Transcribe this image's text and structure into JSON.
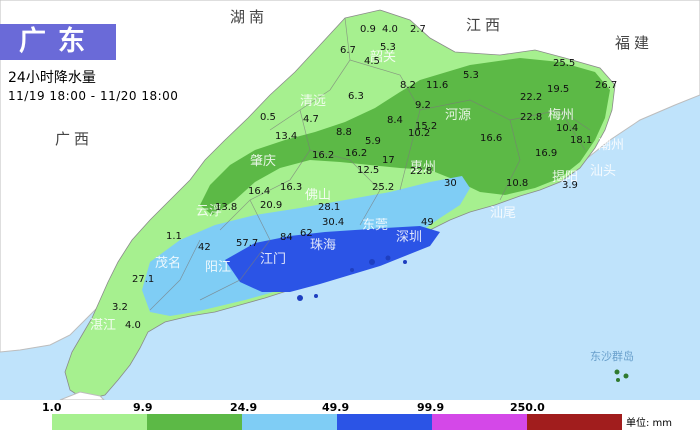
{
  "title": "广东",
  "subtitle": "24小时降水量",
  "time_range": "11/19 18:00 - 11/20 18:00",
  "neighbors": {
    "hunan": "湖南",
    "jiangxi": "江西",
    "fujian": "福建",
    "guangxi": "广西"
  },
  "cities": {
    "shaoguan": "韶关",
    "qingyuan": "清远",
    "heyuan": "河源",
    "meizhou": "梅州",
    "chaozhou": "潮州",
    "jieyang": "揭阳",
    "shantou": "汕头",
    "zhaoqing": "肇庆",
    "foshan": "佛山",
    "huizhou": "惠州",
    "shanwei": "汕尾",
    "jiangmen": "江门",
    "zhuhai": "珠海",
    "yunfu": "云浮",
    "maoming": "茂名",
    "yangjiang": "阳江",
    "zhanjiang": "湛江",
    "shenzhen": "深圳",
    "dongguan": "东莞"
  },
  "dongsha": "东沙群岛",
  "rain_values": [
    {
      "t": "0.9"
    },
    {
      "t": "4.0"
    },
    {
      "t": "2.7"
    },
    {
      "t": "6.7"
    },
    {
      "t": "5.3"
    },
    {
      "t": "4.5"
    },
    {
      "t": "25.5"
    },
    {
      "t": "19.5"
    },
    {
      "t": "8.2"
    },
    {
      "t": "11.6"
    },
    {
      "t": "5.3"
    },
    {
      "t": "6.3"
    },
    {
      "t": "22.2"
    },
    {
      "t": "26.7"
    },
    {
      "t": "0.5"
    },
    {
      "t": "9.2"
    },
    {
      "t": "8.4"
    },
    {
      "t": "22.8"
    },
    {
      "t": "4.7"
    },
    {
      "t": "8.8"
    },
    {
      "t": "15.2"
    },
    {
      "t": "13.4"
    },
    {
      "t": "10.2"
    },
    {
      "t": "16.6"
    },
    {
      "t": "10.4"
    },
    {
      "t": "18.1"
    },
    {
      "t": "5.9"
    },
    {
      "t": "16.2"
    },
    {
      "t": "16.2"
    },
    {
      "t": "16.9"
    },
    {
      "t": "12.5"
    },
    {
      "t": "17"
    },
    {
      "t": "22.8"
    },
    {
      "t": "16.4"
    },
    {
      "t": "16.3"
    },
    {
      "t": "25.2"
    },
    {
      "t": "30"
    },
    {
      "t": "10.8"
    },
    {
      "t": "3.9"
    },
    {
      "t": "20.9"
    },
    {
      "t": "13.8"
    },
    {
      "t": "28.1"
    },
    {
      "t": "30.4"
    },
    {
      "t": "49"
    },
    {
      "t": "1.1"
    },
    {
      "t": "42"
    },
    {
      "t": "57.7"
    },
    {
      "t": "84"
    },
    {
      "t": "62"
    },
    {
      "t": "27.1"
    },
    {
      "t": "3.2"
    },
    {
      "t": "4.0"
    }
  ],
  "legend": {
    "breaks": [
      "1.0",
      "9.9",
      "24.9",
      "49.9",
      "99.9",
      "250.0"
    ],
    "colors": [
      "#a6f08f",
      "#5cb946",
      "#7fcdf5",
      "#2b54e6",
      "#d448e8",
      "#a11d1d"
    ],
    "unit": "单位: mm"
  },
  "colors": {
    "sea": "#bfe3fb",
    "land_outside": "#ffffff",
    "land_dry": "#ececec",
    "light_green": "#a6f08f",
    "green": "#5cb946",
    "light_blue": "#7fcdf5",
    "blue": "#2b54e6",
    "title_bg": "#6a6ad8"
  }
}
